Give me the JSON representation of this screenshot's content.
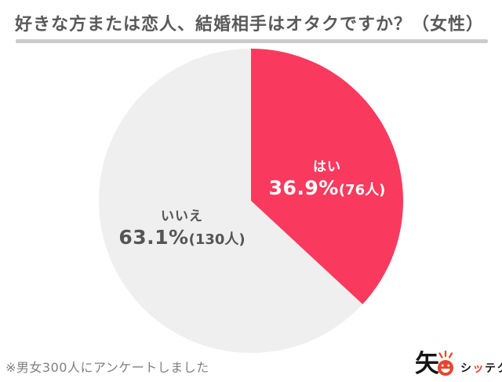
{
  "header": {
    "title": "好きな方または恋人、結婚相手はオタクですか？（女性）",
    "title_color": "#595959",
    "underline_color": "#CBCBCB"
  },
  "chart_data": {
    "type": "pie",
    "title": "好きな方または恋人、結婚相手はオタクですか？（女性）",
    "start_angle_deg": 0,
    "direction": "clockwise",
    "legend_position": "none",
    "slices": [
      {
        "label": "はい",
        "value": 36.9,
        "count": 76,
        "pct_display": "36.9%",
        "count_display": "(76人)",
        "color": "#F93A5E",
        "text_color": "#FFFFFF"
      },
      {
        "label": "いいえ",
        "value": 63.1,
        "count": 130,
        "pct_display": "63.1%",
        "count_display": "(130人)",
        "color": "#EFEFEF",
        "text_color": "#555555"
      }
    ]
  },
  "footnote": {
    "text": "※男女300人にアンケートしました"
  },
  "logo": {
    "kanji": "矢",
    "brand_part1": "シ",
    "brand_part2": "ッ",
    "brand_part3": "テク",
    "accent_color": "#E8432C"
  }
}
